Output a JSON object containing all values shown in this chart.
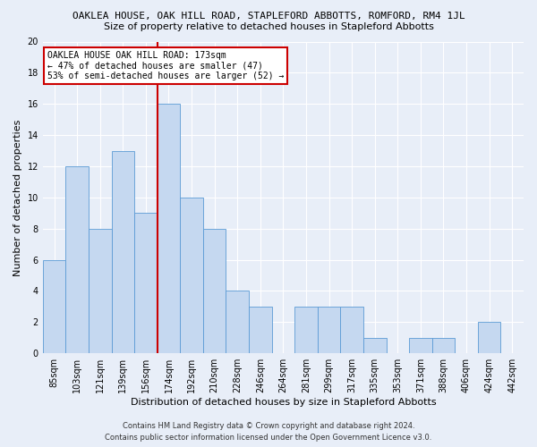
{
  "title": "OAKLEA HOUSE, OAK HILL ROAD, STAPLEFORD ABBOTTS, ROMFORD, RM4 1JL",
  "subtitle": "Size of property relative to detached houses in Stapleford Abbotts",
  "xlabel": "Distribution of detached houses by size in Stapleford Abbotts",
  "ylabel": "Number of detached properties",
  "categories": [
    "85sqm",
    "103sqm",
    "121sqm",
    "139sqm",
    "156sqm",
    "174sqm",
    "192sqm",
    "210sqm",
    "228sqm",
    "246sqm",
    "264sqm",
    "281sqm",
    "299sqm",
    "317sqm",
    "335sqm",
    "353sqm",
    "371sqm",
    "388sqm",
    "406sqm",
    "424sqm",
    "442sqm"
  ],
  "values": [
    6,
    12,
    8,
    13,
    9,
    16,
    10,
    8,
    4,
    3,
    0,
    3,
    3,
    3,
    1,
    0,
    1,
    1,
    0,
    2,
    0
  ],
  "bar_color": "#c5d8f0",
  "bar_edge_color": "#5b9bd5",
  "reference_line_index": 5,
  "reference_line_color": "#cc0000",
  "annotation_title": "OAKLEA HOUSE OAK HILL ROAD: 173sqm",
  "annotation_line1": "← 47% of detached houses are smaller (47)",
  "annotation_line2": "53% of semi-detached houses are larger (52) →",
  "annotation_box_color": "#ffffff",
  "annotation_box_edge_color": "#cc0000",
  "ylim": [
    0,
    20
  ],
  "yticks": [
    0,
    2,
    4,
    6,
    8,
    10,
    12,
    14,
    16,
    18,
    20
  ],
  "footer_line1": "Contains HM Land Registry data © Crown copyright and database right 2024.",
  "footer_line2": "Contains public sector information licensed under the Open Government Licence v3.0.",
  "background_color": "#e8eef8",
  "plot_background_color": "#e8eef8",
  "grid_color": "#ffffff",
  "title_fontsize": 8,
  "subtitle_fontsize": 8,
  "xlabel_fontsize": 8,
  "ylabel_fontsize": 8,
  "tick_fontsize": 7,
  "annotation_fontsize": 7,
  "footer_fontsize": 6
}
